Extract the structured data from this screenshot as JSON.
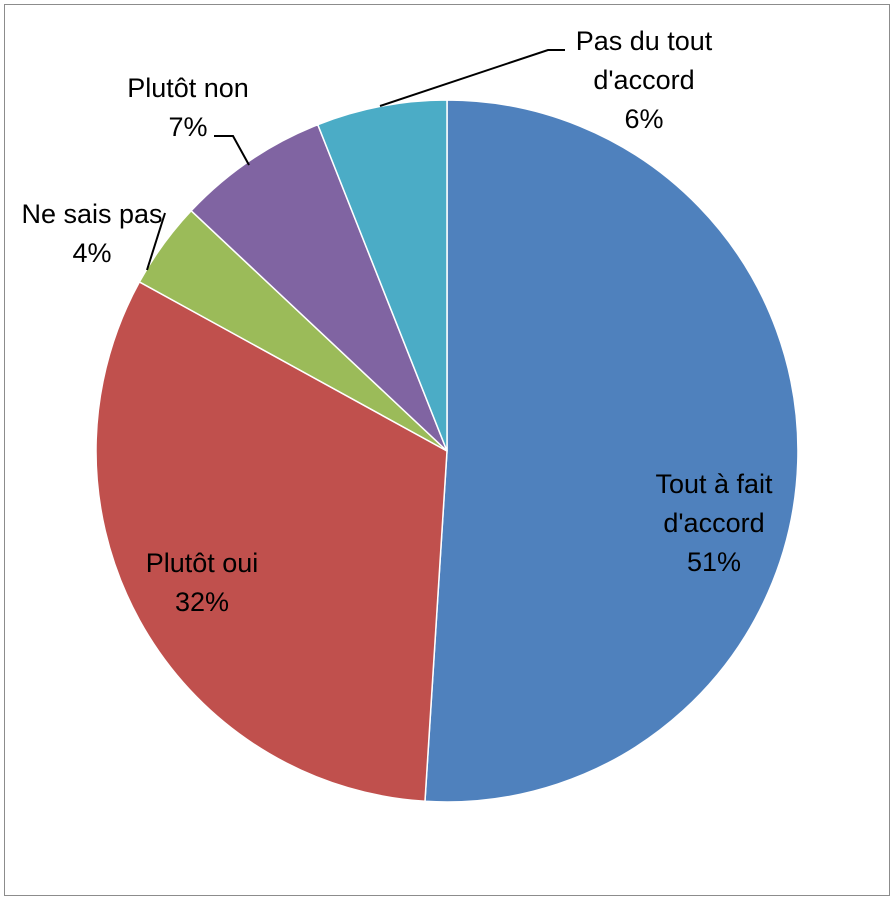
{
  "chart_data": {
    "type": "pie",
    "title": "",
    "legend": "none",
    "start": "top",
    "direction": "clockwise",
    "slices": [
      {
        "label": "Tout à fait d'accord",
        "label_lines": [
          "Tout à fait",
          "d'accord"
        ],
        "value": 51,
        "display": "51%",
        "color": "#4F81BD",
        "label_position": "inside"
      },
      {
        "label": "Plutôt oui",
        "label_lines": [
          "Plutôt oui"
        ],
        "value": 32,
        "display": "32%",
        "color": "#C0504D",
        "label_position": "inside"
      },
      {
        "label": "Ne sais pas",
        "label_lines": [
          "Ne sais pas"
        ],
        "value": 4,
        "display": "4%",
        "color": "#9BBB59",
        "label_position": "outside"
      },
      {
        "label": "Plutôt non",
        "label_lines": [
          "Plutôt non"
        ],
        "value": 7,
        "display": "7%",
        "color": "#8064A2",
        "label_position": "outside"
      },
      {
        "label": "Pas du tout d'accord",
        "label_lines": [
          "Pas du tout",
          "d'accord"
        ],
        "value": 6,
        "display": "6%",
        "color": "#4BACC6",
        "label_position": "outside"
      }
    ]
  }
}
